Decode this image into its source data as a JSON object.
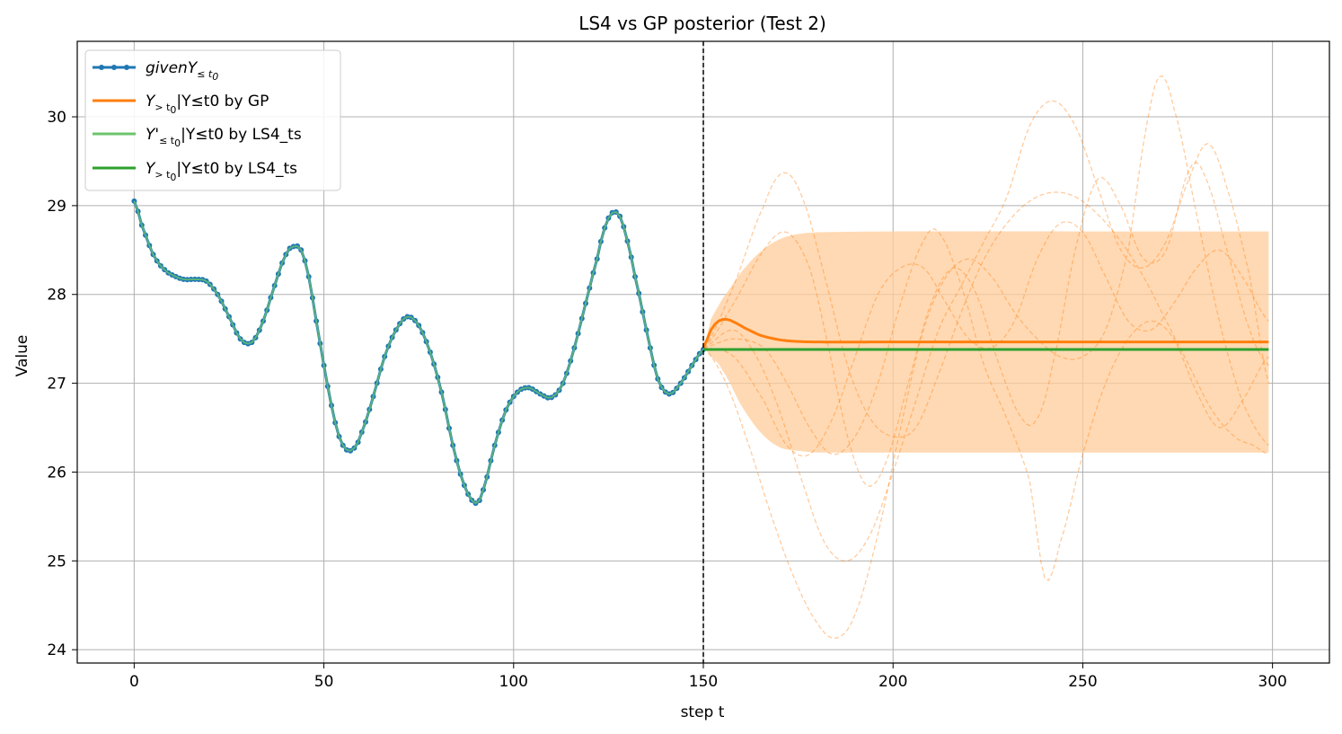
{
  "chart_data": {
    "type": "line",
    "title": "LS4 vs GP posterior (Test 2)",
    "xlabel": "step t",
    "ylabel": "Value",
    "xlim": [
      -15,
      315
    ],
    "ylim": [
      23.85,
      30.85
    ],
    "xticks": [
      "0",
      "50",
      "100",
      "150",
      "200",
      "250",
      "300"
    ],
    "yticks": [
      "24",
      "25",
      "26",
      "27",
      "28",
      "29",
      "30"
    ],
    "xtick_values": [
      0,
      50,
      100,
      150,
      200,
      250,
      300
    ],
    "ytick_values": [
      24,
      25,
      26,
      27,
      28,
      29,
      30
    ],
    "grid": true,
    "legend_position": "upper-left",
    "cutoff_t0": 150,
    "colors": {
      "given": "#1f77b4",
      "gp": "#ff7f0e",
      "gp_band": "#ffcc99",
      "ls4_light": "#6cc46c",
      "ls4": "#2ca02c"
    },
    "legend": [
      {
        "main": "given",
        "sym": "Y",
        "sub1": "≤ t",
        "sub2": "0",
        "rest": ""
      },
      {
        "main": "",
        "sym": "Y",
        "sub1": "> t",
        "sub2": "0",
        "rest": "|Y≤t0 by GP"
      },
      {
        "main": "",
        "sym": "Y'",
        "sub1": "≤ t",
        "sub2": "0",
        "rest": "|Y≤t0 by LS4_ts"
      },
      {
        "main": "",
        "sym": "Y",
        "sub1": "> t",
        "sub2": "0",
        "rest": "|Y≤t0 by LS4_ts"
      }
    ],
    "given_knots": [
      [
        0,
        29.05
      ],
      [
        2,
        28.78
      ],
      [
        5,
        28.45
      ],
      [
        8,
        28.28
      ],
      [
        10,
        28.22
      ],
      [
        13,
        28.17
      ],
      [
        16,
        28.17
      ],
      [
        19,
        28.15
      ],
      [
        22,
        28.0
      ],
      [
        25,
        27.75
      ],
      [
        28,
        27.5
      ],
      [
        31,
        27.46
      ],
      [
        34,
        27.7
      ],
      [
        37,
        28.1
      ],
      [
        40,
        28.45
      ],
      [
        42,
        28.54
      ],
      [
        44,
        28.5
      ],
      [
        46,
        28.2
      ],
      [
        48,
        27.7
      ],
      [
        50,
        27.2
      ],
      [
        52,
        26.75
      ],
      [
        54,
        26.4
      ],
      [
        56,
        26.25
      ],
      [
        58,
        26.27
      ],
      [
        60,
        26.45
      ],
      [
        63,
        26.85
      ],
      [
        66,
        27.3
      ],
      [
        69,
        27.6
      ],
      [
        72,
        27.75
      ],
      [
        75,
        27.65
      ],
      [
        78,
        27.35
      ],
      [
        81,
        26.9
      ],
      [
        84,
        26.3
      ],
      [
        87,
        25.85
      ],
      [
        90,
        25.65
      ],
      [
        92,
        25.8
      ],
      [
        95,
        26.3
      ],
      [
        98,
        26.7
      ],
      [
        101,
        26.9
      ],
      [
        104,
        26.95
      ],
      [
        107,
        26.88
      ],
      [
        110,
        26.84
      ],
      [
        113,
        27.0
      ],
      [
        116,
        27.4
      ],
      [
        119,
        27.9
      ],
      [
        122,
        28.4
      ],
      [
        124,
        28.75
      ],
      [
        126,
        28.92
      ],
      [
        128,
        28.88
      ],
      [
        130,
        28.6
      ],
      [
        132,
        28.2
      ],
      [
        135,
        27.6
      ],
      [
        138,
        27.05
      ],
      [
        141,
        26.88
      ],
      [
        144,
        27.0
      ],
      [
        147,
        27.2
      ],
      [
        150,
        27.38
      ]
    ],
    "gp_mean": [
      [
        150,
        27.4
      ],
      [
        152,
        27.6
      ],
      [
        154,
        27.7
      ],
      [
        156,
        27.72
      ],
      [
        158,
        27.69
      ],
      [
        161,
        27.62
      ],
      [
        165,
        27.54
      ],
      [
        170,
        27.49
      ],
      [
        175,
        27.47
      ],
      [
        180,
        27.465
      ],
      [
        200,
        27.465
      ],
      [
        250,
        27.465
      ],
      [
        299,
        27.465
      ]
    ],
    "gp_upper": [
      [
        150,
        27.4
      ],
      [
        152,
        27.72
      ],
      [
        155,
        27.95
      ],
      [
        160,
        28.25
      ],
      [
        165,
        28.48
      ],
      [
        170,
        28.62
      ],
      [
        175,
        28.68
      ],
      [
        180,
        28.7
      ],
      [
        200,
        28.71
      ],
      [
        250,
        28.71
      ],
      [
        299,
        28.71
      ]
    ],
    "gp_lower": [
      [
        150,
        27.4
      ],
      [
        152,
        27.3
      ],
      [
        155,
        27.15
      ],
      [
        160,
        26.75
      ],
      [
        165,
        26.45
      ],
      [
        170,
        26.28
      ],
      [
        175,
        26.24
      ],
      [
        180,
        26.22
      ],
      [
        200,
        26.22
      ],
      [
        250,
        26.22
      ],
      [
        299,
        26.22
      ]
    ],
    "ls4_forecast": [
      [
        150,
        27.38
      ],
      [
        299,
        27.38
      ]
    ],
    "gp_samples": [
      [
        [
          150,
          27.4
        ],
        [
          158,
          28.1
        ],
        [
          166,
          29.0
        ],
        [
          171,
          29.37
        ],
        [
          176,
          29.1
        ],
        [
          182,
          28.2
        ],
        [
          188,
          27.2
        ],
        [
          194,
          26.6
        ],
        [
          200,
          26.4
        ],
        [
          206,
          26.5
        ],
        [
          212,
          27.1
        ],
        [
          218,
          27.8
        ],
        [
          224,
          28.4
        ],
        [
          230,
          28.8
        ],
        [
          236,
          29.05
        ],
        [
          242,
          29.15
        ],
        [
          248,
          29.1
        ],
        [
          254,
          28.9
        ],
        [
          260,
          28.6
        ],
        [
          266,
          28.2
        ],
        [
          272,
          27.7
        ],
        [
          278,
          27.2
        ],
        [
          284,
          26.7
        ],
        [
          290,
          26.4
        ],
        [
          295,
          26.3
        ],
        [
          299,
          26.2
        ]
      ],
      [
        [
          150,
          27.4
        ],
        [
          158,
          27.6
        ],
        [
          164,
          27.3
        ],
        [
          170,
          26.7
        ],
        [
          176,
          25.9
        ],
        [
          182,
          25.2
        ],
        [
          188,
          25.0
        ],
        [
          194,
          25.3
        ],
        [
          200,
          26.0
        ],
        [
          206,
          26.8
        ],
        [
          212,
          27.6
        ],
        [
          218,
          28.1
        ],
        [
          224,
          28.6
        ],
        [
          230,
          29.1
        ],
        [
          236,
          29.9
        ],
        [
          242,
          30.18
        ],
        [
          248,
          29.9
        ],
        [
          254,
          29.2
        ],
        [
          260,
          28.5
        ],
        [
          266,
          28.3
        ],
        [
          272,
          28.6
        ],
        [
          278,
          29.3
        ],
        [
          283,
          29.7
        ],
        [
          288,
          29.2
        ],
        [
          294,
          28.2
        ],
        [
          299,
          27.0
        ]
      ],
      [
        [
          150,
          27.4
        ],
        [
          156,
          27.0
        ],
        [
          162,
          26.3
        ],
        [
          168,
          25.5
        ],
        [
          174,
          24.8
        ],
        [
          180,
          24.3
        ],
        [
          185,
          24.13
        ],
        [
          190,
          24.4
        ],
        [
          196,
          25.3
        ],
        [
          202,
          26.5
        ],
        [
          208,
          27.6
        ],
        [
          214,
          28.2
        ],
        [
          220,
          28.4
        ],
        [
          226,
          28.2
        ],
        [
          232,
          27.8
        ],
        [
          238,
          27.5
        ],
        [
          244,
          27.3
        ],
        [
          250,
          27.3
        ],
        [
          256,
          27.6
        ],
        [
          262,
          28.5
        ],
        [
          266,
          29.7
        ],
        [
          270,
          30.45
        ],
        [
          274,
          30.1
        ],
        [
          280,
          28.9
        ],
        [
          286,
          27.7
        ],
        [
          292,
          26.8
        ],
        [
          299,
          26.3
        ]
      ],
      [
        [
          150,
          27.4
        ],
        [
          158,
          27.9
        ],
        [
          166,
          28.5
        ],
        [
          172,
          28.7
        ],
        [
          178,
          28.3
        ],
        [
          183,
          27.4
        ],
        [
          188,
          26.4
        ],
        [
          193,
          25.85
        ],
        [
          198,
          26.1
        ],
        [
          204,
          27.0
        ],
        [
          210,
          27.9
        ],
        [
          216,
          28.3
        ],
        [
          222,
          28.0
        ],
        [
          228,
          27.2
        ],
        [
          234,
          26.6
        ],
        [
          238,
          26.6
        ],
        [
          242,
          27.2
        ],
        [
          248,
          28.5
        ],
        [
          254,
          29.3
        ],
        [
          260,
          29.0
        ],
        [
          266,
          28.4
        ],
        [
          272,
          28.5
        ],
        [
          278,
          29.4
        ],
        [
          282,
          29.35
        ],
        [
          288,
          28.5
        ],
        [
          294,
          27.6
        ],
        [
          299,
          27.2
        ]
      ],
      [
        [
          150,
          27.4
        ],
        [
          158,
          27.3
        ],
        [
          166,
          26.8
        ],
        [
          172,
          26.3
        ],
        [
          178,
          26.2
        ],
        [
          184,
          26.6
        ],
        [
          190,
          27.3
        ],
        [
          196,
          28.0
        ],
        [
          202,
          28.3
        ],
        [
          208,
          28.3
        ],
        [
          214,
          27.9
        ],
        [
          220,
          27.5
        ],
        [
          226,
          27.4
        ],
        [
          232,
          27.7
        ],
        [
          238,
          28.4
        ],
        [
          244,
          28.8
        ],
        [
          250,
          28.7
        ],
        [
          256,
          28.2
        ],
        [
          262,
          27.7
        ],
        [
          268,
          27.6
        ],
        [
          274,
          27.9
        ],
        [
          280,
          28.3
        ],
        [
          286,
          28.5
        ],
        [
          292,
          28.2
        ],
        [
          299,
          27.7
        ]
      ],
      [
        [
          150,
          27.4
        ],
        [
          158,
          27.5
        ],
        [
          166,
          27.4
        ],
        [
          172,
          27.0
        ],
        [
          178,
          26.5
        ],
        [
          184,
          26.2
        ],
        [
          190,
          26.4
        ],
        [
          196,
          27.0
        ],
        [
          202,
          27.9
        ],
        [
          208,
          28.6
        ],
        [
          212,
          28.7
        ],
        [
          218,
          28.1
        ],
        [
          224,
          27.2
        ],
        [
          230,
          26.6
        ],
        [
          236,
          25.9
        ],
        [
          240,
          24.8
        ],
        [
          244,
          25.2
        ],
        [
          250,
          26.2
        ],
        [
          256,
          27.0
        ],
        [
          262,
          27.5
        ],
        [
          268,
          27.7
        ],
        [
          274,
          27.5
        ],
        [
          280,
          26.9
        ],
        [
          286,
          26.5
        ],
        [
          292,
          26.8
        ],
        [
          299,
          27.3
        ]
      ]
    ]
  }
}
